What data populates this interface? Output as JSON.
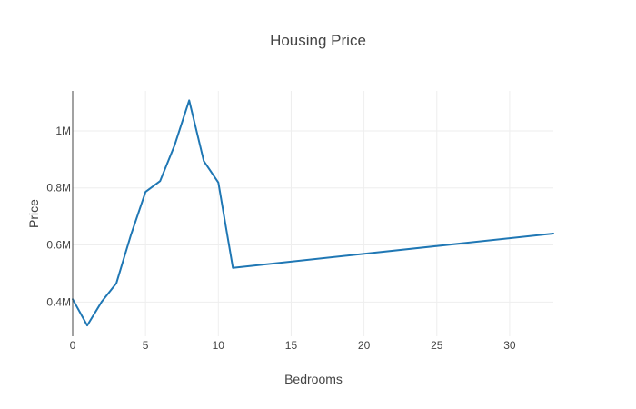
{
  "chart_data": {
    "type": "line",
    "title": "Housing Price",
    "xlabel": "Bedrooms",
    "ylabel": "Price",
    "xlim": [
      0,
      33
    ],
    "ylim": [
      280000,
      1140000
    ],
    "grid": true,
    "x_ticks": [
      {
        "value": 0,
        "label": "0"
      },
      {
        "value": 5,
        "label": "5"
      },
      {
        "value": 10,
        "label": "10"
      },
      {
        "value": 15,
        "label": "15"
      },
      {
        "value": 20,
        "label": "20"
      },
      {
        "value": 25,
        "label": "25"
      },
      {
        "value": 30,
        "label": "30"
      }
    ],
    "y_ticks": [
      {
        "value": 400000,
        "label": "0.4M"
      },
      {
        "value": 600000,
        "label": "0.6M"
      },
      {
        "value": 800000,
        "label": "0.8M"
      },
      {
        "value": 1000000,
        "label": "1M"
      }
    ],
    "series": [
      {
        "color": "#1f77b4",
        "x": [
          0,
          1,
          2,
          3,
          4,
          5,
          6,
          7,
          8,
          9,
          10,
          11,
          33
        ],
        "y": [
          410000,
          318000,
          402000,
          466000,
          635000,
          786000,
          824000,
          950000,
          1107000,
          894000,
          819000,
          520000,
          640000
        ]
      }
    ]
  }
}
